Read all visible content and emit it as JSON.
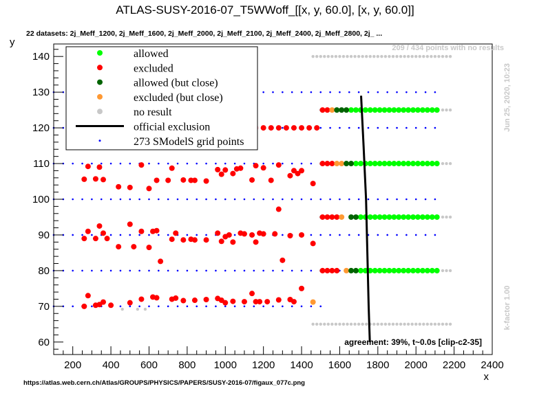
{
  "chart_data": {
    "type": "scatter",
    "title": "ATLAS-SUSY-2016-07_T5WWoff_[[x, y, 60.0], [x, y, 60.0]]",
    "subtitle": "22 datasets: 2j_Meff_1200, 2j_Meff_1600, 2j_Meff_2000, 2j_Meff_2100, 2j_Meff_2400, 2j_Meff_2800, 2j_ ...",
    "xlabel": "x",
    "ylabel": "y",
    "xlim": [
      100,
      2400
    ],
    "ylim": [
      56.5,
      143.5
    ],
    "xticks": [
      "200",
      "400",
      "600",
      "800",
      "1000",
      "1200",
      "1400",
      "1600",
      "1800",
      "2000",
      "2200",
      "2400"
    ],
    "yticks": [
      "60",
      "70",
      "80",
      "90",
      "100",
      "110",
      "120",
      "130",
      "140"
    ],
    "legend": [
      {
        "label": "allowed",
        "color": "#00ff00"
      },
      {
        "label": "excluded",
        "color": "#ff0000"
      },
      {
        "label": "allowed (but close)",
        "color": "#006400"
      },
      {
        "label": "excluded (but close)",
        "color": "#ff9933"
      },
      {
        "label": "no result",
        "color": "#c8c8c8"
      },
      {
        "label": "official exclusion",
        "color": "#000000"
      },
      {
        "label": "273 SModelS grid points",
        "color": "#0000ff"
      }
    ],
    "legend_position": "top-left",
    "no_results_note": "209 / 434 points with no results",
    "timestamp": "Jun 25, 2020, 10:23",
    "kfactor": "k-factor 1.00",
    "agreement": "agreement: 39%, t~0.0s [clip-c2-35]",
    "source_url": "https://atlas.web.cern.ch/Atlas/GROUPS/PHYSICS/PAPERS/SUSY-2016-07/figaux_077c.png",
    "grid_rows": [
      {
        "y": 70,
        "x0": 100,
        "x1": 1500
      },
      {
        "y": 80,
        "x0": 100,
        "x1": 2100
      },
      {
        "y": 90,
        "x0": 100,
        "x1": 2100
      },
      {
        "y": 100,
        "x0": 100,
        "x1": 2100
      },
      {
        "y": 110,
        "x0": 100,
        "x1": 2100
      },
      {
        "y": 120,
        "x0": 100,
        "x1": 2100
      },
      {
        "y": 130,
        "x0": 100,
        "x1": 2100
      }
    ],
    "grid_step": 50,
    "official_exclusion": [
      [
        1712,
        129
      ],
      [
        1725,
        115
      ],
      [
        1738,
        100
      ],
      [
        1745,
        85
      ],
      [
        1752,
        70
      ],
      [
        1758,
        60
      ]
    ],
    "series": {
      "excluded": [
        [
          260,
          70
        ],
        [
          280,
          73
        ],
        [
          320,
          70.3
        ],
        [
          340,
          70.5
        ],
        [
          360,
          71.2
        ],
        [
          400,
          70.3
        ],
        [
          500,
          71
        ],
        [
          560,
          72
        ],
        [
          620,
          72.6
        ],
        [
          640,
          72.4
        ],
        [
          720,
          72
        ],
        [
          740,
          72.3
        ],
        [
          780,
          71.6
        ],
        [
          840,
          71.7
        ],
        [
          900,
          71.9
        ],
        [
          960,
          72.2
        ],
        [
          980,
          71.7
        ],
        [
          1000,
          71
        ],
        [
          1040,
          71.4
        ],
        [
          1100,
          71.3
        ],
        [
          1140,
          73.6
        ],
        [
          1160,
          71.3
        ],
        [
          1180,
          71.3
        ],
        [
          1220,
          71.3
        ],
        [
          1280,
          71.8
        ],
        [
          1340,
          71.9
        ],
        [
          1360,
          71.3
        ],
        [
          1400,
          75
        ],
        [
          260,
          89
        ],
        [
          280,
          91
        ],
        [
          320,
          89
        ],
        [
          340,
          92.5
        ],
        [
          360,
          90.5
        ],
        [
          380,
          89
        ],
        [
          440,
          86.7
        ],
        [
          500,
          93
        ],
        [
          520,
          86.7
        ],
        [
          560,
          91
        ],
        [
          600,
          86.5
        ],
        [
          620,
          91
        ],
        [
          640,
          91.2
        ],
        [
          660,
          82.6
        ],
        [
          720,
          88.8
        ],
        [
          740,
          90.5
        ],
        [
          780,
          88.6
        ],
        [
          820,
          88.8
        ],
        [
          840,
          88.6
        ],
        [
          900,
          88.6
        ],
        [
          960,
          90.5
        ],
        [
          980,
          88.2
        ],
        [
          1000,
          89.5
        ],
        [
          1020,
          90
        ],
        [
          1040,
          88
        ],
        [
          1080,
          90.5
        ],
        [
          1100,
          90.3
        ],
        [
          1140,
          90
        ],
        [
          1160,
          88
        ],
        [
          1180,
          90.5
        ],
        [
          1200,
          90.3
        ],
        [
          1260,
          90.3
        ],
        [
          1280,
          97.2
        ],
        [
          1300,
          82.9
        ],
        [
          1340,
          89.8
        ],
        [
          1400,
          90
        ],
        [
          1460,
          87.6
        ],
        [
          260,
          105.6
        ],
        [
          280,
          109.2
        ],
        [
          320,
          105.7
        ],
        [
          340,
          109
        ],
        [
          360,
          105.5
        ],
        [
          440,
          103.5
        ],
        [
          500,
          103.3
        ],
        [
          560,
          109.6
        ],
        [
          600,
          103
        ],
        [
          640,
          105.3
        ],
        [
          700,
          105.3
        ],
        [
          720,
          108.7
        ],
        [
          780,
          105.4
        ],
        [
          820,
          105.3
        ],
        [
          840,
          105.3
        ],
        [
          900,
          105.1
        ],
        [
          960,
          108.3
        ],
        [
          980,
          107
        ],
        [
          1000,
          108.2
        ],
        [
          1040,
          107.2
        ],
        [
          1060,
          108.5
        ],
        [
          1080,
          108.7
        ],
        [
          1140,
          105.4
        ],
        [
          1160,
          109.4
        ],
        [
          1200,
          108.8
        ],
        [
          1240,
          105.3
        ],
        [
          1280,
          109.6
        ],
        [
          1340,
          106.6
        ],
        [
          1360,
          108
        ],
        [
          1380,
          107.2
        ],
        [
          1400,
          108
        ],
        [
          1460,
          104.4
        ],
        [
          200,
          120
        ],
        [
          240,
          120
        ],
        [
          280,
          120
        ],
        [
          320,
          120
        ],
        [
          360,
          120
        ],
        [
          400,
          120
        ],
        [
          440,
          120
        ],
        [
          480,
          120
        ],
        [
          520,
          120
        ],
        [
          560,
          120
        ],
        [
          600,
          120
        ],
        [
          640,
          120
        ],
        [
          680,
          120
        ],
        [
          720,
          120
        ],
        [
          760,
          120
        ],
        [
          800,
          120
        ],
        [
          840,
          120
        ],
        [
          880,
          120
        ],
        [
          920,
          120
        ],
        [
          960,
          120
        ],
        [
          1000,
          120
        ],
        [
          1040,
          120
        ],
        [
          1080,
          120
        ],
        [
          1120,
          120
        ],
        [
          1160,
          120
        ],
        [
          1200,
          120
        ],
        [
          1240,
          120
        ],
        [
          1280,
          120
        ],
        [
          1320,
          120
        ],
        [
          1360,
          120
        ],
        [
          1400,
          120
        ],
        [
          1440,
          120
        ],
        [
          1480,
          120
        ],
        [
          1510,
          125
        ],
        [
          1535,
          125
        ],
        [
          1510,
          110
        ],
        [
          1535,
          110
        ],
        [
          1510,
          95
        ],
        [
          1535,
          95
        ],
        [
          1510,
          80
        ],
        [
          1535,
          80
        ],
        [
          1560,
          80
        ],
        [
          1585,
          80
        ],
        [
          1560,
          95
        ],
        [
          1585,
          95
        ],
        [
          1560,
          110
        ]
      ],
      "excluded_close": [
        [
          1560,
          125
        ],
        [
          1585,
          110
        ],
        [
          1610,
          110
        ],
        [
          1610,
          95
        ],
        [
          1635,
          80
        ],
        [
          1460,
          71.2
        ]
      ],
      "allowed_close": [
        [
          1585,
          125
        ],
        [
          1610,
          125
        ],
        [
          1635,
          125
        ],
        [
          1635,
          110
        ],
        [
          1660,
          110
        ],
        [
          1660,
          95
        ],
        [
          1685,
          95
        ],
        [
          1660,
          80
        ],
        [
          1685,
          80
        ]
      ],
      "allowed": {
        "rows": [
          125,
          110,
          95,
          80
        ],
        "x_start": [
          1660,
          1685,
          1710,
          1710
        ],
        "x_end": 2120,
        "step": 25
      },
      "no_result_rows": [
        {
          "y": 140,
          "x0": 1460,
          "x1": 2180
        },
        {
          "y": 125,
          "x0": 2140,
          "x1": 2180
        },
        {
          "y": 110,
          "x0": 2140,
          "x1": 2180
        },
        {
          "y": 95,
          "x0": 2140,
          "x1": 2180
        },
        {
          "y": 80,
          "x0": 2140,
          "x1": 2180
        },
        {
          "y": 65,
          "x0": 1460,
          "x1": 2180
        }
      ],
      "no_result_extra": [
        [
          460,
          69.2
        ],
        [
          540,
          69.2
        ],
        [
          580,
          69.2
        ],
        [
          1500,
          125
        ],
        [
          1500,
          110
        ],
        [
          1500,
          95
        ],
        [
          1500,
          80
        ]
      ]
    }
  },
  "colors": {
    "allowed": "#00ff00",
    "excluded": "#ff0000",
    "allowed_close": "#006400",
    "excluded_close": "#ff9933",
    "no_result": "#c8c8c8",
    "grid_point": "#0000ff",
    "exclusion": "#000000",
    "pink_overlay": "#f4b8c4",
    "faint_text": "#c8c8c8"
  }
}
